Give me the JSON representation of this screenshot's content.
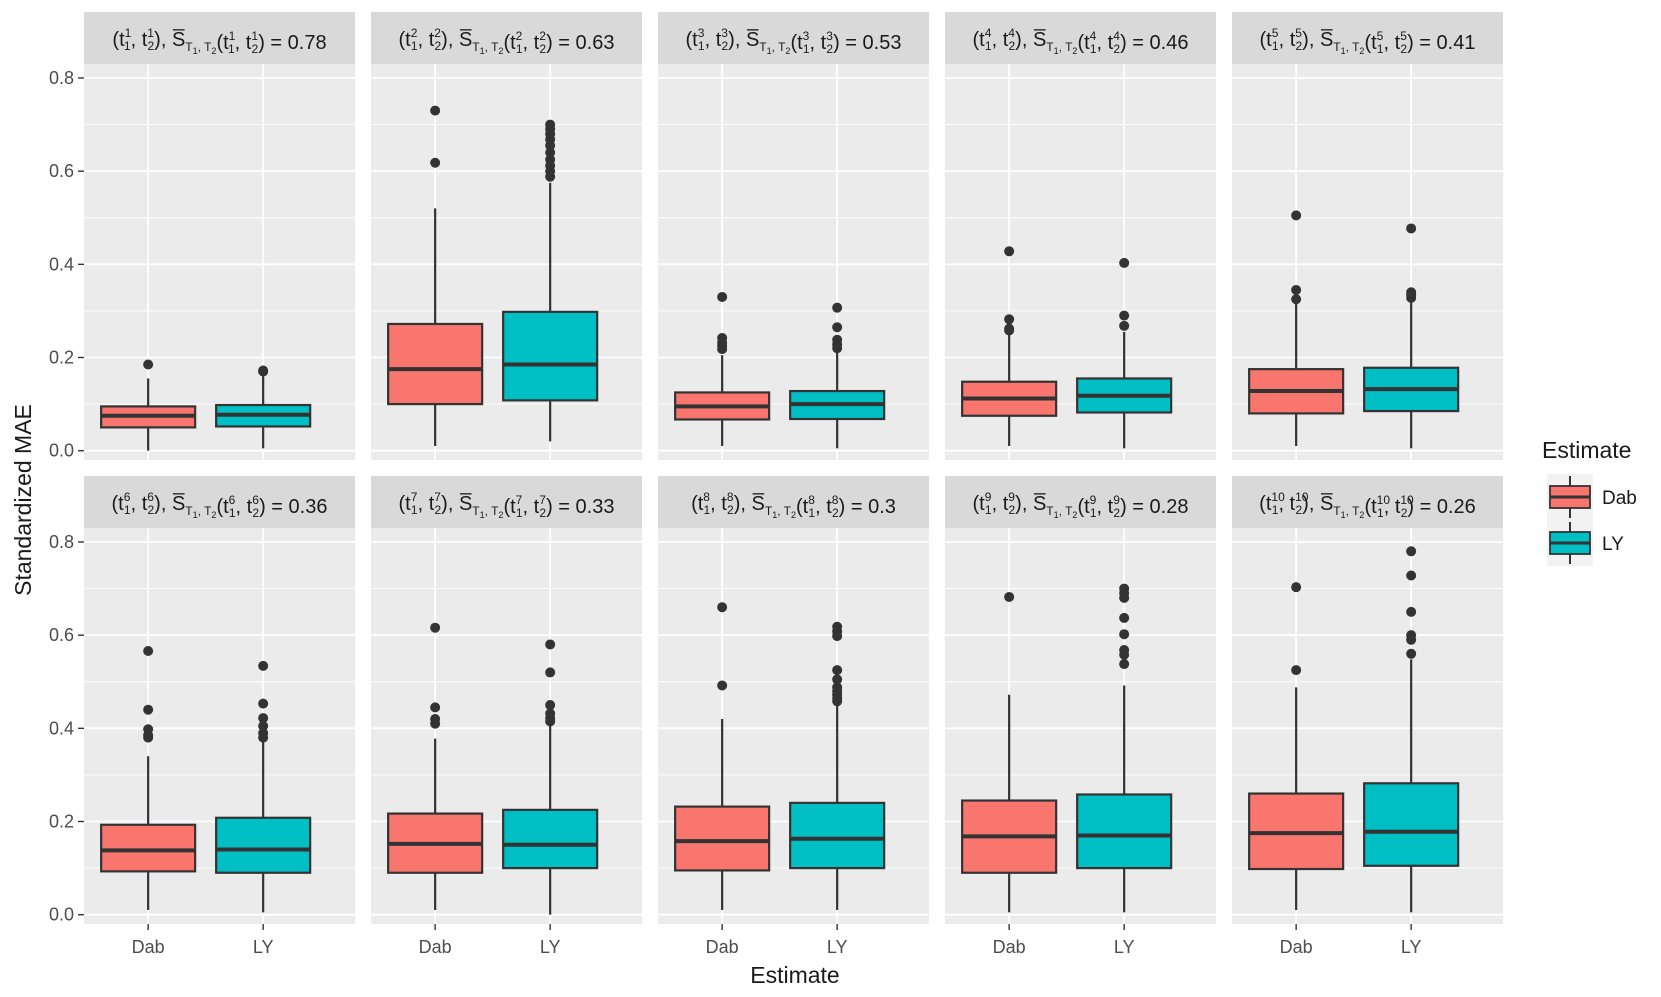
{
  "chart_data": {
    "type": "boxplot",
    "xlabel": "Estimate",
    "ylabel": "Standardized MAE",
    "ylim": [
      -0.02,
      0.83
    ],
    "y_ticks": [
      0.0,
      0.2,
      0.4,
      0.6,
      0.8
    ],
    "y_tick_labels": [
      "0.0",
      "0.2",
      "0.4",
      "0.6",
      "0.8"
    ],
    "categories": [
      "Dab",
      "LY"
    ],
    "grid": true,
    "legend": {
      "title": "Estimate",
      "position": "right",
      "entries": [
        {
          "name": "Dab",
          "color": "#F8766D"
        },
        {
          "name": "LY",
          "color": "#00BFC4"
        }
      ]
    },
    "panels": [
      {
        "k": "1",
        "s": "0.78",
        "boxes": [
          {
            "estimate": "Dab",
            "min": 0.0,
            "q1": 0.05,
            "median": 0.075,
            "q3": 0.095,
            "max": 0.155,
            "outliers": [
              0.185
            ]
          },
          {
            "estimate": "LY",
            "min": 0.005,
            "q1": 0.052,
            "median": 0.077,
            "q3": 0.098,
            "max": 0.16,
            "outliers": [
              0.17,
              0.172
            ]
          }
        ]
      },
      {
        "k": "2",
        "s": "0.63",
        "boxes": [
          {
            "estimate": "Dab",
            "min": 0.01,
            "q1": 0.1,
            "median": 0.175,
            "q3": 0.272,
            "max": 0.52,
            "outliers": [
              0.618,
              0.73
            ]
          },
          {
            "estimate": "LY",
            "min": 0.02,
            "q1": 0.108,
            "median": 0.185,
            "q3": 0.298,
            "max": 0.575,
            "outliers": [
              0.588,
              0.6,
              0.612,
              0.625,
              0.64,
              0.655,
              0.668,
              0.68,
              0.69,
              0.7
            ]
          }
        ]
      },
      {
        "k": "3",
        "s": "0.53",
        "boxes": [
          {
            "estimate": "Dab",
            "min": 0.01,
            "q1": 0.067,
            "median": 0.095,
            "q3": 0.125,
            "max": 0.205,
            "outliers": [
              0.218,
              0.225,
              0.232,
              0.242,
              0.33
            ]
          },
          {
            "estimate": "LY",
            "min": 0.005,
            "q1": 0.068,
            "median": 0.1,
            "q3": 0.128,
            "max": 0.21,
            "outliers": [
              0.22,
              0.228,
              0.238,
              0.265,
              0.307
            ]
          }
        ]
      },
      {
        "k": "4",
        "s": "0.46",
        "boxes": [
          {
            "estimate": "Dab",
            "min": 0.01,
            "q1": 0.075,
            "median": 0.112,
            "q3": 0.148,
            "max": 0.25,
            "outliers": [
              0.258,
              0.262,
              0.282,
              0.428
            ]
          },
          {
            "estimate": "LY",
            "min": 0.005,
            "q1": 0.082,
            "median": 0.118,
            "q3": 0.155,
            "max": 0.255,
            "outliers": [
              0.268,
              0.29,
              0.403
            ]
          }
        ]
      },
      {
        "k": "5",
        "s": "0.41",
        "boxes": [
          {
            "estimate": "Dab",
            "min": 0.01,
            "q1": 0.08,
            "median": 0.128,
            "q3": 0.175,
            "max": 0.315,
            "outliers": [
              0.325,
              0.345,
              0.505
            ]
          },
          {
            "estimate": "LY",
            "min": 0.005,
            "q1": 0.085,
            "median": 0.132,
            "q3": 0.178,
            "max": 0.318,
            "outliers": [
              0.328,
              0.335,
              0.34,
              0.477
            ]
          }
        ]
      },
      {
        "k": "6",
        "s": "0.36",
        "boxes": [
          {
            "estimate": "Dab",
            "min": 0.01,
            "q1": 0.093,
            "median": 0.138,
            "q3": 0.193,
            "max": 0.34,
            "outliers": [
              0.38,
              0.385,
              0.398,
              0.44,
              0.566
            ]
          },
          {
            "estimate": "LY",
            "min": 0.005,
            "q1": 0.09,
            "median": 0.14,
            "q3": 0.208,
            "max": 0.37,
            "outliers": [
              0.38,
              0.39,
              0.405,
              0.422,
              0.453,
              0.534
            ]
          }
        ]
      },
      {
        "k": "7",
        "s": "0.33",
        "boxes": [
          {
            "estimate": "Dab",
            "min": 0.01,
            "q1": 0.09,
            "median": 0.152,
            "q3": 0.217,
            "max": 0.378,
            "outliers": [
              0.41,
              0.42,
              0.445,
              0.616
            ]
          },
          {
            "estimate": "LY",
            "min": 0.0,
            "q1": 0.1,
            "median": 0.15,
            "q3": 0.225,
            "max": 0.405,
            "outliers": [
              0.415,
              0.422,
              0.432,
              0.45,
              0.52,
              0.58
            ]
          }
        ]
      },
      {
        "k": "8",
        "s": "0.3",
        "boxes": [
          {
            "estimate": "Dab",
            "min": 0.01,
            "q1": 0.095,
            "median": 0.158,
            "q3": 0.232,
            "max": 0.42,
            "outliers": [
              0.492,
              0.66
            ]
          },
          {
            "estimate": "LY",
            "min": 0.01,
            "q1": 0.1,
            "median": 0.163,
            "q3": 0.24,
            "max": 0.448,
            "outliers": [
              0.458,
              0.465,
              0.472,
              0.48,
              0.488,
              0.505,
              0.525,
              0.598,
              0.608,
              0.618
            ]
          }
        ]
      },
      {
        "k": "9",
        "s": "0.28",
        "boxes": [
          {
            "estimate": "Dab",
            "min": 0.005,
            "q1": 0.09,
            "median": 0.168,
            "q3": 0.245,
            "max": 0.472,
            "outliers": [
              0.682
            ]
          },
          {
            "estimate": "LY",
            "min": 0.005,
            "q1": 0.1,
            "median": 0.17,
            "q3": 0.258,
            "max": 0.492,
            "outliers": [
              0.538,
              0.558,
              0.568,
              0.602,
              0.637,
              0.68,
              0.69,
              0.7
            ]
          }
        ]
      },
      {
        "k": "10",
        "s": "0.26",
        "boxes": [
          {
            "estimate": "Dab",
            "min": 0.01,
            "q1": 0.098,
            "median": 0.175,
            "q3": 0.26,
            "max": 0.488,
            "outliers": [
              0.525,
              0.703
            ]
          },
          {
            "estimate": "LY",
            "min": 0.005,
            "q1": 0.105,
            "median": 0.178,
            "q3": 0.282,
            "max": 0.548,
            "outliers": [
              0.56,
              0.59,
              0.6,
              0.65,
              0.728,
              0.78
            ]
          }
        ]
      }
    ]
  }
}
